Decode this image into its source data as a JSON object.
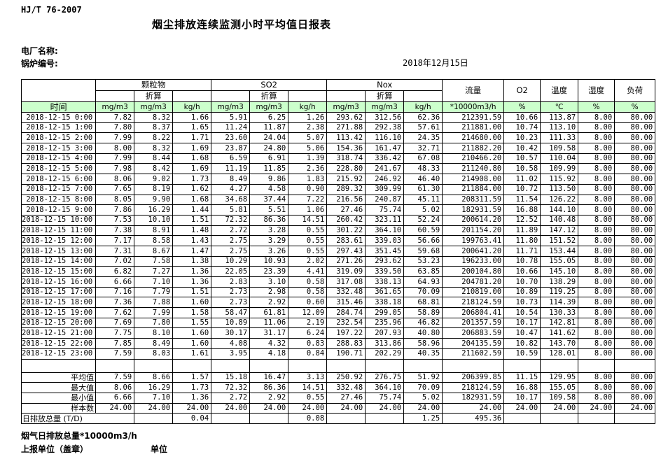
{
  "page": {
    "standard_code": "HJ/T  76-2007",
    "title": "烟尘排放连续监测小时平均值日报表",
    "plant_label": "电厂名称:",
    "boiler_label": "锅炉编号:",
    "date": "2018年12月15日"
  },
  "table": {
    "time_label": "时间",
    "converted_label": "折算",
    "groups": [
      "颗粒物",
      "SO2",
      "Nox"
    ],
    "right_headers": [
      "流量",
      "O2",
      "温度",
      "湿度",
      "负荷"
    ],
    "units": [
      "mg/m3",
      "mg/m3",
      "kg/h",
      "mg/m3",
      "mg/m3",
      "kg/h",
      "mg/m3",
      "mg/m3",
      "kg/h",
      "*10000m3/h",
      "%",
      "℃",
      "%",
      "%"
    ],
    "rows": [
      {
        "time": "2018-12-15 0:00",
        "values": [
          "7.82",
          "8.32",
          "1.66",
          "5.91",
          "6.25",
          "1.26",
          "293.62",
          "312.56",
          "62.36",
          "212391.59",
          "10.66",
          "113.87",
          "8.00",
          "80.00"
        ]
      },
      {
        "time": "2018-12-15 1:00",
        "values": [
          "7.80",
          "8.37",
          "1.65",
          "11.24",
          "11.87",
          "2.38",
          "271.88",
          "292.38",
          "57.61",
          "211881.00",
          "10.74",
          "113.10",
          "8.00",
          "80.00"
        ]
      },
      {
        "time": "2018-12-15 2:00",
        "values": [
          "7.99",
          "8.22",
          "1.71",
          "23.60",
          "24.04",
          "5.07",
          "113.42",
          "116.10",
          "24.35",
          "214680.00",
          "10.23",
          "111.33",
          "8.00",
          "80.00"
        ]
      },
      {
        "time": "2018-12-15 3:00",
        "values": [
          "8.00",
          "8.32",
          "1.69",
          "23.87",
          "24.80",
          "5.06",
          "154.36",
          "161.47",
          "32.71",
          "211882.20",
          "10.42",
          "109.58",
          "8.00",
          "80.00"
        ]
      },
      {
        "time": "2018-12-15 4:00",
        "values": [
          "7.99",
          "8.44",
          "1.68",
          "6.59",
          "6.91",
          "1.39",
          "318.74",
          "336.42",
          "67.08",
          "210466.20",
          "10.57",
          "110.04",
          "8.00",
          "80.00"
        ]
      },
      {
        "time": "2018-12-15 5:00",
        "values": [
          "7.98",
          "8.42",
          "1.69",
          "11.19",
          "11.85",
          "2.36",
          "228.80",
          "241.67",
          "48.33",
          "211240.80",
          "10.58",
          "109.99",
          "8.00",
          "80.00"
        ]
      },
      {
        "time": "2018-12-15 6:00",
        "values": [
          "8.06",
          "9.02",
          "1.73",
          "8.49",
          "9.86",
          "1.83",
          "215.92",
          "246.92",
          "46.40",
          "214908.00",
          "11.02",
          "115.92",
          "8.00",
          "80.00"
        ]
      },
      {
        "time": "2018-12-15 7:00",
        "values": [
          "7.65",
          "8.19",
          "1.62",
          "4.27",
          "4.58",
          "0.90",
          "289.32",
          "309.99",
          "61.30",
          "211884.00",
          "10.72",
          "113.50",
          "8.00",
          "80.00"
        ]
      },
      {
        "time": "2018-12-15 8:00",
        "values": [
          "8.05",
          "9.90",
          "1.68",
          "34.68",
          "37.44",
          "7.22",
          "216.56",
          "240.87",
          "45.11",
          "208311.59",
          "11.54",
          "126.22",
          "8.00",
          "80.00"
        ]
      },
      {
        "time": "2018-12-15 9:00",
        "values": [
          "7.86",
          "16.29",
          "1.44",
          "5.81",
          "5.51",
          "1.06",
          "27.46",
          "75.74",
          "5.02",
          "182931.59",
          "16.88",
          "144.10",
          "8.00",
          "80.00"
        ]
      },
      {
        "time": "2018-12-15 10:00",
        "values": [
          "7.53",
          "10.10",
          "1.51",
          "72.32",
          "86.36",
          "14.51",
          "260.42",
          "323.11",
          "52.24",
          "200614.20",
          "12.52",
          "140.48",
          "8.00",
          "80.00"
        ]
      },
      {
        "time": "2018-12-15 11:00",
        "values": [
          "7.38",
          "8.91",
          "1.48",
          "2.72",
          "3.28",
          "0.55",
          "301.22",
          "364.10",
          "60.59",
          "201154.20",
          "11.89",
          "147.12",
          "8.00",
          "80.00"
        ]
      },
      {
        "time": "2018-12-15 12:00",
        "values": [
          "7.17",
          "8.58",
          "1.43",
          "2.75",
          "3.29",
          "0.55",
          "283.61",
          "339.03",
          "56.66",
          "199763.41",
          "11.80",
          "151.52",
          "8.00",
          "80.00"
        ]
      },
      {
        "time": "2018-12-15 13:00",
        "values": [
          "7.31",
          "8.67",
          "1.47",
          "2.75",
          "3.26",
          "0.55",
          "297.43",
          "351.45",
          "59.68",
          "200641.20",
          "11.71",
          "153.44",
          "8.00",
          "80.00"
        ]
      },
      {
        "time": "2018-12-15 14:00",
        "values": [
          "7.02",
          "7.58",
          "1.38",
          "10.29",
          "10.93",
          "2.02",
          "271.26",
          "293.62",
          "53.23",
          "196233.00",
          "10.78",
          "155.05",
          "8.00",
          "80.00"
        ]
      },
      {
        "time": "2018-12-15 15:00",
        "values": [
          "6.82",
          "7.27",
          "1.36",
          "22.05",
          "23.39",
          "4.41",
          "319.09",
          "339.50",
          "63.85",
          "200104.80",
          "10.66",
          "145.10",
          "8.00",
          "80.00"
        ]
      },
      {
        "time": "2018-12-15 16:00",
        "values": [
          "6.66",
          "7.10",
          "1.36",
          "2.83",
          "3.10",
          "0.58",
          "317.08",
          "338.13",
          "64.93",
          "204781.20",
          "10.70",
          "138.29",
          "8.00",
          "80.00"
        ]
      },
      {
        "time": "2018-12-15 17:00",
        "values": [
          "7.16",
          "7.79",
          "1.51",
          "2.73",
          "2.98",
          "0.58",
          "332.48",
          "361.65",
          "70.09",
          "210819.00",
          "10.89",
          "119.25",
          "8.00",
          "80.00"
        ]
      },
      {
        "time": "2018-12-15 18:00",
        "values": [
          "7.36",
          "7.88",
          "1.60",
          "2.73",
          "2.92",
          "0.60",
          "315.46",
          "338.18",
          "68.81",
          "218124.59",
          "10.73",
          "114.39",
          "8.00",
          "80.00"
        ]
      },
      {
        "time": "2018-12-15 19:00",
        "values": [
          "7.62",
          "7.99",
          "1.58",
          "58.47",
          "61.81",
          "12.09",
          "284.74",
          "299.05",
          "58.89",
          "206804.41",
          "10.54",
          "130.33",
          "8.00",
          "80.00"
        ]
      },
      {
        "time": "2018-12-15 20:00",
        "values": [
          "7.69",
          "7.80",
          "1.55",
          "10.89",
          "11.06",
          "2.19",
          "232.54",
          "235.96",
          "46.82",
          "201357.59",
          "10.17",
          "142.81",
          "8.00",
          "80.00"
        ]
      },
      {
        "time": "2018-12-15 21:00",
        "values": [
          "7.75",
          "8.10",
          "1.60",
          "30.17",
          "31.17",
          "6.24",
          "197.22",
          "207.93",
          "40.80",
          "206883.59",
          "10.47",
          "141.62",
          "8.00",
          "80.00"
        ]
      },
      {
        "time": "2018-12-15 22:00",
        "values": [
          "7.85",
          "8.49",
          "1.60",
          "4.08",
          "4.32",
          "0.83",
          "288.83",
          "313.86",
          "58.96",
          "204135.59",
          "10.82",
          "143.70",
          "8.00",
          "80.00"
        ]
      },
      {
        "time": "2018-12-15 23:00",
        "values": [
          "7.59",
          "8.03",
          "1.61",
          "3.95",
          "4.18",
          "0.84",
          "190.71",
          "202.29",
          "40.35",
          "211602.59",
          "10.59",
          "128.01",
          "8.00",
          "80.00"
        ]
      }
    ],
    "summary": [
      {
        "label": "平均值",
        "align": "right",
        "values": [
          "7.59",
          "8.66",
          "1.57",
          "15.18",
          "16.47",
          "3.13",
          "250.92",
          "276.75",
          "51.92",
          "206399.85",
          "11.15",
          "129.95",
          "8.00",
          "80.00"
        ]
      },
      {
        "label": "最大值",
        "align": "right",
        "values": [
          "8.06",
          "16.29",
          "1.73",
          "72.32",
          "86.36",
          "14.51",
          "332.48",
          "364.10",
          "70.09",
          "218124.59",
          "16.88",
          "155.05",
          "8.00",
          "80.00"
        ]
      },
      {
        "label": "最小值",
        "align": "right",
        "values": [
          "6.66",
          "7.10",
          "1.36",
          "2.72",
          "2.92",
          "0.55",
          "27.46",
          "75.74",
          "5.02",
          "182931.59",
          "10.17",
          "109.58",
          "8.00",
          "80.00"
        ]
      },
      {
        "label": "样本数",
        "align": "right",
        "values": [
          "24.00",
          "24.00",
          "24.00",
          "24.00",
          "24.00",
          "24.00",
          "24.00",
          "24.00",
          "24.00",
          "24.00",
          "24.00",
          "24.00",
          "24.00",
          "24.00"
        ]
      },
      {
        "label": "日排放总量 (T/D)",
        "align": "left",
        "label_colspan": 2,
        "values": [
          "",
          "0.04",
          "",
          "",
          "0.08",
          "",
          "",
          "1.25",
          "495.36",
          "",
          "",
          "",
          ""
        ]
      }
    ]
  },
  "footer": {
    "flow_note": "烟气日排放总量*10000m3/h",
    "report_unit_label": "上报单位（盖章）",
    "unit_label": "单位"
  }
}
